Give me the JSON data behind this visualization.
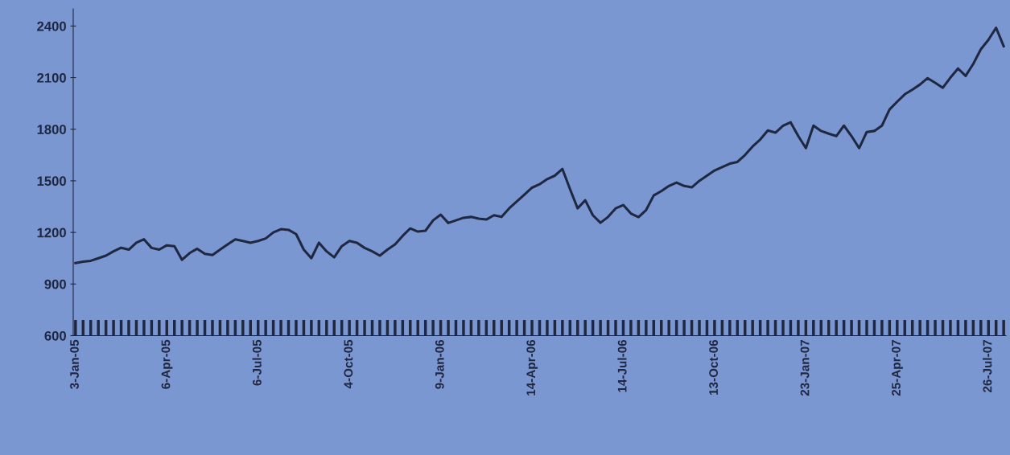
{
  "chart_data": {
    "type": "line",
    "categories": [
      "3-Jan-05",
      null,
      null,
      null,
      null,
      null,
      null,
      null,
      null,
      null,
      null,
      null,
      "6-Apr-05",
      null,
      null,
      null,
      null,
      null,
      null,
      null,
      null,
      null,
      null,
      null,
      "6-Jul-05",
      null,
      null,
      null,
      null,
      null,
      null,
      null,
      null,
      null,
      null,
      null,
      "4-Oct-05",
      null,
      null,
      null,
      null,
      null,
      null,
      null,
      null,
      null,
      null,
      null,
      "9-Jan-06",
      null,
      null,
      null,
      null,
      null,
      null,
      null,
      null,
      null,
      null,
      null,
      "14-Apr-06",
      null,
      null,
      null,
      null,
      null,
      null,
      null,
      null,
      null,
      null,
      null,
      "14-Jul-06",
      null,
      null,
      null,
      null,
      null,
      null,
      null,
      null,
      null,
      null,
      null,
      "13-Oct-06",
      null,
      null,
      null,
      null,
      null,
      null,
      null,
      null,
      null,
      null,
      null,
      "23-Jan-07",
      null,
      null,
      null,
      null,
      null,
      null,
      null,
      null,
      null,
      null,
      null,
      "25-Apr-07",
      null,
      null,
      null,
      null,
      null,
      null,
      null,
      null,
      null,
      null,
      null,
      "26-Jul-07",
      null,
      null
    ],
    "series": [
      {
        "color": "#1f2840",
        "values": [
          1022,
          1030,
          1035,
          1050,
          1065,
          1090,
          1111,
          1100,
          1140,
          1160,
          1110,
          1100,
          1125,
          1120,
          1041,
          1080,
          1105,
          1075,
          1068,
          1100,
          1130,
          1160,
          1150,
          1140,
          1150,
          1165,
          1200,
          1219,
          1215,
          1190,
          1100,
          1050,
          1140,
          1090,
          1055,
          1120,
          1150,
          1140,
          1110,
          1090,
          1065,
          1100,
          1130,
          1180,
          1223,
          1205,
          1210,
          1270,
          1303,
          1255,
          1270,
          1285,
          1290,
          1280,
          1275,
          1300,
          1290,
          1340,
          1380,
          1420,
          1460,
          1480,
          1510,
          1530,
          1569,
          1452,
          1340,
          1387,
          1300,
          1256,
          1290,
          1340,
          1359,
          1310,
          1289,
          1330,
          1415,
          1440,
          1470,
          1490,
          1470,
          1462,
          1500,
          1530,
          1560,
          1580,
          1600,
          1610,
          1650,
          1700,
          1740,
          1793,
          1780,
          1820,
          1840,
          1760,
          1690,
          1821,
          1790,
          1774,
          1760,
          1821,
          1760,
          1690,
          1784,
          1790,
          1821,
          1915,
          1960,
          2003,
          2030,
          2060,
          2097,
          2070,
          2041,
          2100,
          2153,
          2110,
          2180,
          2265,
          2320,
          2390,
          2283
        ]
      }
    ],
    "ylim": [
      600,
      2500
    ],
    "yticks": [
      600,
      900,
      1200,
      1500,
      1800,
      2100,
      2400
    ],
    "marker": "none",
    "line_style": "solid"
  }
}
